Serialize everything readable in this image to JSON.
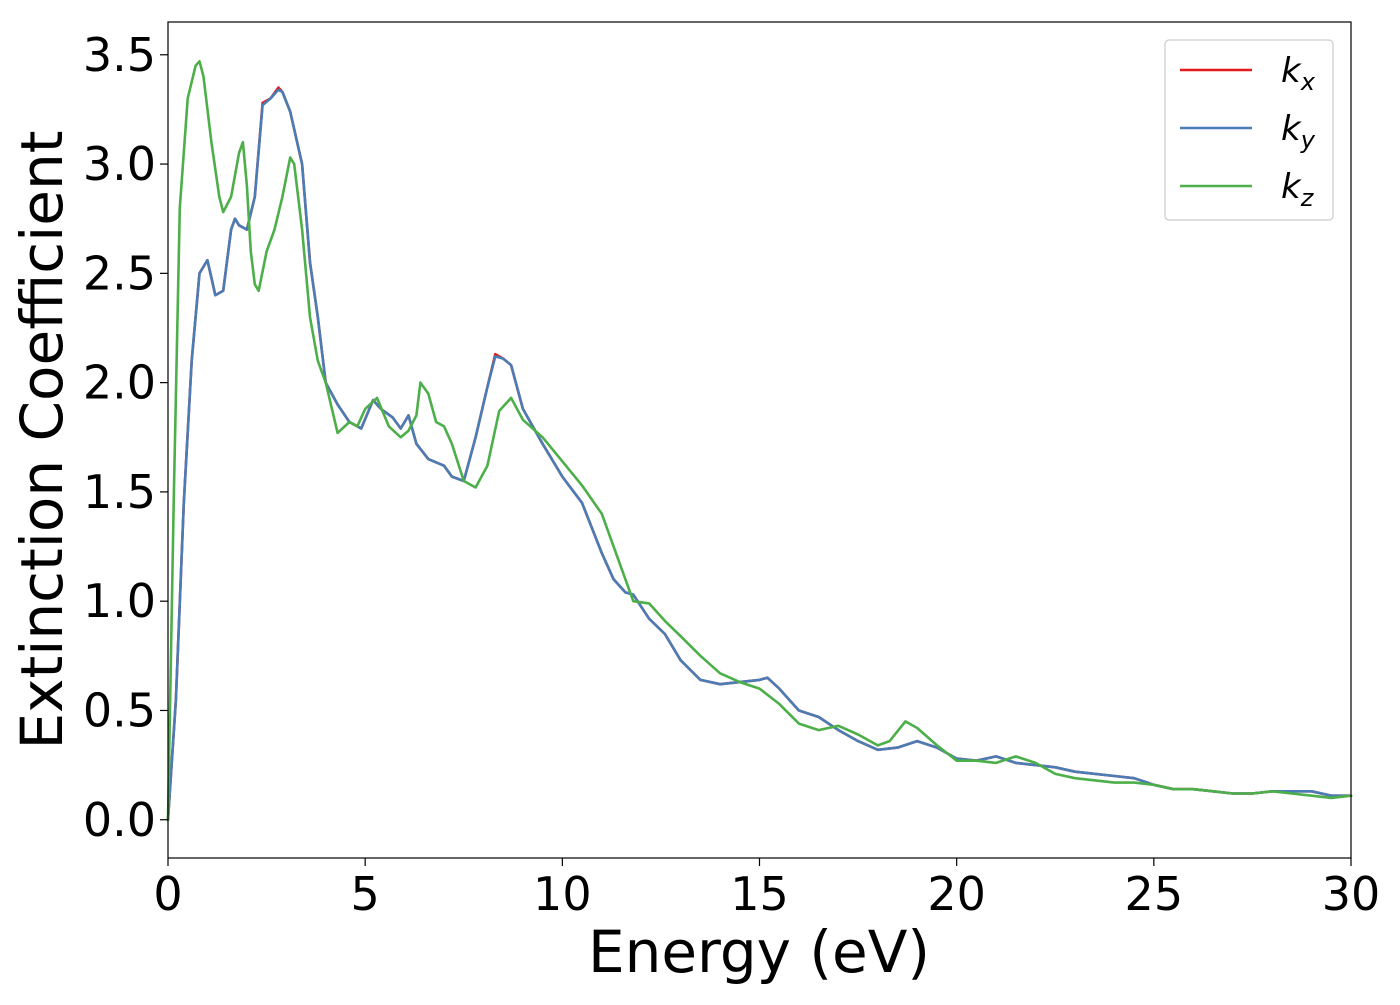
{
  "chart_data": {
    "type": "line",
    "title": "",
    "xlabel": "Energy (eV)",
    "ylabel": "Extinction Coefficient",
    "xlim": [
      0,
      30
    ],
    "ylim": [
      -0.175,
      3.65
    ],
    "xticks": [
      "0",
      "5",
      "10",
      "15",
      "20",
      "25",
      "30"
    ],
    "xtick_values": [
      0,
      5,
      10,
      15,
      20,
      25,
      30
    ],
    "yticks": [
      "0.0",
      "0.5",
      "1.0",
      "1.5",
      "2.0",
      "2.5",
      "3.0",
      "3.5"
    ],
    "ytick_values": [
      0,
      0.5,
      1.0,
      1.5,
      2.0,
      2.5,
      3.0,
      3.5
    ],
    "grid": false,
    "legend_position": "top-right",
    "series": [
      {
        "name": "kx",
        "symbol": "k",
        "subscript": "x",
        "color": "#e41a1c",
        "x": [
          0,
          0.2,
          0.4,
          0.6,
          0.8,
          1.0,
          1.1,
          1.2,
          1.4,
          1.6,
          1.7,
          1.8,
          2.0,
          2.2,
          2.4,
          2.6,
          2.8,
          2.9,
          3.1,
          3.4,
          3.6,
          3.8,
          4.0,
          4.3,
          4.6,
          4.9,
          5.2,
          5.4,
          5.7,
          5.9,
          6.1,
          6.3,
          6.6,
          7.0,
          7.2,
          7.5,
          7.8,
          8.1,
          8.3,
          8.5,
          8.7,
          9.0,
          9.5,
          10.0,
          10.5,
          11.0,
          11.3,
          11.6,
          11.8,
          12.2,
          12.6,
          13.0,
          13.5,
          14.0,
          14.5,
          15.0,
          15.2,
          15.5,
          16.0,
          16.5,
          17.0,
          17.5,
          18.0,
          18.5,
          19.0,
          19.5,
          20.0,
          20.5,
          21.0,
          21.5,
          22.0,
          22.5,
          23.0,
          24.0,
          24.5,
          25.0,
          25.5,
          26.0,
          26.5,
          27.0,
          27.5,
          28.0,
          28.5,
          29.0,
          29.5,
          30.0
        ],
        "y": [
          0.0,
          0.55,
          1.45,
          2.1,
          2.5,
          2.56,
          2.48,
          2.4,
          2.42,
          2.7,
          2.75,
          2.72,
          2.7,
          2.85,
          3.28,
          3.3,
          3.35,
          3.33,
          3.24,
          3.0,
          2.55,
          2.3,
          2.0,
          1.9,
          1.82,
          1.79,
          1.92,
          1.88,
          1.84,
          1.79,
          1.85,
          1.72,
          1.65,
          1.62,
          1.57,
          1.55,
          1.75,
          1.98,
          2.13,
          2.11,
          2.08,
          1.88,
          1.72,
          1.57,
          1.45,
          1.22,
          1.1,
          1.04,
          1.03,
          0.92,
          0.85,
          0.73,
          0.64,
          0.62,
          0.63,
          0.64,
          0.65,
          0.6,
          0.5,
          0.47,
          0.41,
          0.36,
          0.32,
          0.33,
          0.36,
          0.33,
          0.28,
          0.27,
          0.29,
          0.26,
          0.25,
          0.24,
          0.22,
          0.2,
          0.19,
          0.16,
          0.14,
          0.14,
          0.13,
          0.12,
          0.12,
          0.13,
          0.13,
          0.13,
          0.11,
          0.11
        ]
      },
      {
        "name": "ky",
        "symbol": "k",
        "subscript": "y",
        "color": "#4a7db5",
        "x": [
          0,
          0.2,
          0.4,
          0.6,
          0.8,
          1.0,
          1.1,
          1.2,
          1.4,
          1.6,
          1.7,
          1.8,
          2.0,
          2.2,
          2.4,
          2.6,
          2.8,
          2.9,
          3.1,
          3.4,
          3.6,
          3.8,
          4.0,
          4.3,
          4.6,
          4.9,
          5.2,
          5.4,
          5.7,
          5.9,
          6.1,
          6.3,
          6.6,
          7.0,
          7.2,
          7.5,
          7.8,
          8.1,
          8.3,
          8.5,
          8.7,
          9.0,
          9.5,
          10.0,
          10.5,
          11.0,
          11.3,
          11.6,
          11.8,
          12.2,
          12.6,
          13.0,
          13.5,
          14.0,
          14.5,
          15.0,
          15.2,
          15.5,
          16.0,
          16.5,
          17.0,
          17.5,
          18.0,
          18.5,
          19.0,
          19.5,
          20.0,
          20.5,
          21.0,
          21.5,
          22.0,
          22.5,
          23.0,
          24.0,
          24.5,
          25.0,
          25.5,
          26.0,
          26.5,
          27.0,
          27.5,
          28.0,
          28.5,
          29.0,
          29.5,
          30.0
        ],
        "y": [
          0.0,
          0.55,
          1.45,
          2.1,
          2.5,
          2.56,
          2.48,
          2.4,
          2.42,
          2.7,
          2.75,
          2.72,
          2.7,
          2.85,
          3.27,
          3.3,
          3.34,
          3.33,
          3.24,
          3.0,
          2.55,
          2.3,
          2.0,
          1.9,
          1.82,
          1.79,
          1.92,
          1.88,
          1.84,
          1.79,
          1.85,
          1.72,
          1.65,
          1.62,
          1.57,
          1.55,
          1.75,
          1.98,
          2.12,
          2.11,
          2.08,
          1.88,
          1.72,
          1.57,
          1.45,
          1.22,
          1.1,
          1.04,
          1.03,
          0.92,
          0.85,
          0.73,
          0.64,
          0.62,
          0.63,
          0.64,
          0.65,
          0.6,
          0.5,
          0.47,
          0.41,
          0.36,
          0.32,
          0.33,
          0.36,
          0.33,
          0.28,
          0.27,
          0.29,
          0.26,
          0.25,
          0.24,
          0.22,
          0.2,
          0.19,
          0.16,
          0.14,
          0.14,
          0.13,
          0.12,
          0.12,
          0.13,
          0.13,
          0.13,
          0.11,
          0.11
        ]
      },
      {
        "name": "kz",
        "symbol": "k",
        "subscript": "z",
        "color": "#4daf4a",
        "x": [
          0,
          0.15,
          0.3,
          0.5,
          0.7,
          0.8,
          0.9,
          1.1,
          1.3,
          1.4,
          1.6,
          1.8,
          1.9,
          2.0,
          2.1,
          2.2,
          2.3,
          2.5,
          2.7,
          2.9,
          3.1,
          3.2,
          3.4,
          3.6,
          3.8,
          4.0,
          4.3,
          4.6,
          4.8,
          5.0,
          5.3,
          5.6,
          5.9,
          6.1,
          6.3,
          6.4,
          6.6,
          6.8,
          7.0,
          7.2,
          7.5,
          7.8,
          8.1,
          8.4,
          8.7,
          9.0,
          9.5,
          10.0,
          10.5,
          11.0,
          11.3,
          11.6,
          11.8,
          12.2,
          12.6,
          13.0,
          13.5,
          14.0,
          14.5,
          15.0,
          15.5,
          16.0,
          16.5,
          17.0,
          17.5,
          18.0,
          18.3,
          18.7,
          19.0,
          19.5,
          20.0,
          20.5,
          21.0,
          21.5,
          22.0,
          22.5,
          23.0,
          24.0,
          24.5,
          25.0,
          25.5,
          26.0,
          26.5,
          27.0,
          27.5,
          28.0,
          28.5,
          29.0,
          29.5,
          30.0
        ],
        "y": [
          0.0,
          1.5,
          2.8,
          3.3,
          3.45,
          3.47,
          3.4,
          3.1,
          2.85,
          2.78,
          2.85,
          3.05,
          3.1,
          2.9,
          2.6,
          2.45,
          2.42,
          2.6,
          2.7,
          2.85,
          3.03,
          3.0,
          2.7,
          2.3,
          2.1,
          2.0,
          1.77,
          1.82,
          1.8,
          1.88,
          1.93,
          1.8,
          1.75,
          1.78,
          1.85,
          2.0,
          1.95,
          1.82,
          1.8,
          1.72,
          1.55,
          1.52,
          1.62,
          1.87,
          1.93,
          1.83,
          1.75,
          1.64,
          1.53,
          1.4,
          1.25,
          1.1,
          1.0,
          0.99,
          0.91,
          0.84,
          0.75,
          0.67,
          0.63,
          0.6,
          0.53,
          0.44,
          0.41,
          0.43,
          0.39,
          0.34,
          0.36,
          0.45,
          0.42,
          0.34,
          0.27,
          0.27,
          0.26,
          0.29,
          0.26,
          0.21,
          0.19,
          0.17,
          0.17,
          0.16,
          0.14,
          0.14,
          0.13,
          0.12,
          0.12,
          0.13,
          0.12,
          0.11,
          0.1,
          0.11
        ]
      }
    ]
  }
}
